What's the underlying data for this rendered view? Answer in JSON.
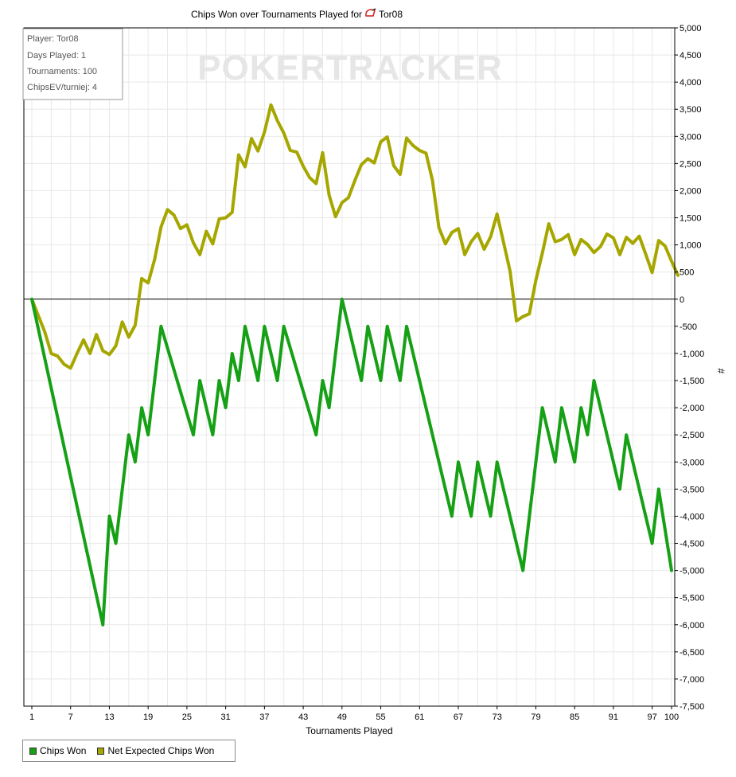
{
  "chart_data": {
    "type": "line",
    "title": "Chips Won over Tournaments Played for",
    "player_name": "Tor08",
    "xlabel": "Tournaments Played",
    "ylabel": "#",
    "xlim": [
      1,
      100
    ],
    "ylim": [
      -7500,
      5000
    ],
    "x_ticks": [
      1,
      7,
      13,
      19,
      25,
      31,
      37,
      43,
      49,
      55,
      61,
      67,
      73,
      79,
      85,
      91,
      97,
      100
    ],
    "y_ticks": [
      5000,
      4500,
      4000,
      3500,
      3000,
      2500,
      2000,
      1500,
      1000,
      500,
      0,
      -500,
      -1000,
      -1500,
      -2000,
      -2500,
      -3000,
      -3500,
      -4000,
      -4500,
      -5000,
      -5500,
      -6000,
      -6500,
      -7000,
      -7500
    ],
    "y_tick_labels": [
      "5,000",
      "4,500",
      "4,000",
      "3,500",
      "3,000",
      "2,500",
      "2,000",
      "1,500",
      "1,000",
      "500",
      "0",
      "-500",
      "-1,000",
      "-1,500",
      "-2,000",
      "-2,500",
      "-3,000",
      "-3,500",
      "-4,000",
      "-4,500",
      "-5,000",
      "-5,500",
      "-6,000",
      "-6,500",
      "-7,000",
      "-7,500"
    ],
    "grid": true,
    "legend_position": "bottom-left",
    "watermark": "POKERTRACKER",
    "info_box": [
      "Player: Tor08",
      "Days Played: 1",
      "Tournaments: 100",
      "ChipsEV/turniej: 4"
    ],
    "series": [
      {
        "name": "Chips Won",
        "color": "#16a016",
        "points": [
          [
            1,
            0
          ],
          [
            12,
            -6000
          ],
          [
            13,
            -4000
          ],
          [
            14,
            -4500
          ],
          [
            16,
            -2500
          ],
          [
            17,
            -3000
          ],
          [
            18,
            -2000
          ],
          [
            19,
            -2500
          ],
          [
            21,
            -500
          ],
          [
            26,
            -2500
          ],
          [
            27,
            -1500
          ],
          [
            29,
            -2500
          ],
          [
            30,
            -1500
          ],
          [
            31,
            -2000
          ],
          [
            32,
            -1000
          ],
          [
            33,
            -1500
          ],
          [
            34,
            -500
          ],
          [
            36,
            -1500
          ],
          [
            37,
            -500
          ],
          [
            39,
            -1500
          ],
          [
            40,
            -500
          ],
          [
            45,
            -2500
          ],
          [
            46,
            -1500
          ],
          [
            47,
            -2000
          ],
          [
            49,
            0
          ],
          [
            52,
            -1500
          ],
          [
            53,
            -500
          ],
          [
            55,
            -1500
          ],
          [
            56,
            -500
          ],
          [
            58,
            -1500
          ],
          [
            59,
            -500
          ],
          [
            66,
            -4000
          ],
          [
            67,
            -3000
          ],
          [
            69,
            -4000
          ],
          [
            70,
            -3000
          ],
          [
            72,
            -4000
          ],
          [
            73,
            -3000
          ],
          [
            77,
            -5000
          ],
          [
            80,
            -2000
          ],
          [
            82,
            -3000
          ],
          [
            83,
            -2000
          ],
          [
            85,
            -3000
          ],
          [
            86,
            -2000
          ],
          [
            87,
            -2500
          ],
          [
            88,
            -1500
          ],
          [
            92,
            -3500
          ],
          [
            93,
            -2500
          ],
          [
            97,
            -4500
          ],
          [
            98,
            -3500
          ],
          [
            100,
            -5000
          ]
        ]
      },
      {
        "name": "Net Expected Chips Won",
        "color": "#a6a600",
        "points": [
          [
            1,
            0
          ],
          [
            2,
            -300
          ],
          [
            3,
            -600
          ],
          [
            4,
            -1000
          ],
          [
            5,
            -1050
          ],
          [
            6,
            -1200
          ],
          [
            7,
            -1270
          ],
          [
            8,
            -1000
          ],
          [
            9,
            -750
          ],
          [
            10,
            -1000
          ],
          [
            11,
            -650
          ],
          [
            12,
            -950
          ],
          [
            13,
            -1020
          ],
          [
            14,
            -860
          ],
          [
            15,
            -420
          ],
          [
            16,
            -700
          ],
          [
            17,
            -480
          ],
          [
            18,
            380
          ],
          [
            19,
            300
          ],
          [
            20,
            730
          ],
          [
            21,
            1330
          ],
          [
            22,
            1650
          ],
          [
            23,
            1550
          ],
          [
            24,
            1300
          ],
          [
            25,
            1370
          ],
          [
            26,
            1040
          ],
          [
            27,
            820
          ],
          [
            28,
            1250
          ],
          [
            29,
            1020
          ],
          [
            30,
            1480
          ],
          [
            31,
            1500
          ],
          [
            32,
            1600
          ],
          [
            33,
            2660
          ],
          [
            34,
            2440
          ],
          [
            35,
            2960
          ],
          [
            36,
            2730
          ],
          [
            37,
            3080
          ],
          [
            38,
            3580
          ],
          [
            39,
            3290
          ],
          [
            40,
            3060
          ],
          [
            41,
            2740
          ],
          [
            42,
            2710
          ],
          [
            43,
            2450
          ],
          [
            44,
            2240
          ],
          [
            45,
            2130
          ],
          [
            46,
            2700
          ],
          [
            47,
            1920
          ],
          [
            48,
            1520
          ],
          [
            49,
            1780
          ],
          [
            50,
            1870
          ],
          [
            51,
            2190
          ],
          [
            52,
            2480
          ],
          [
            53,
            2590
          ],
          [
            54,
            2510
          ],
          [
            55,
            2900
          ],
          [
            56,
            2990
          ],
          [
            57,
            2460
          ],
          [
            58,
            2300
          ],
          [
            59,
            2970
          ],
          [
            60,
            2830
          ],
          [
            61,
            2740
          ],
          [
            62,
            2690
          ],
          [
            63,
            2190
          ],
          [
            64,
            1320
          ],
          [
            65,
            1020
          ],
          [
            66,
            1230
          ],
          [
            67,
            1300
          ],
          [
            68,
            820
          ],
          [
            69,
            1060
          ],
          [
            70,
            1210
          ],
          [
            71,
            920
          ],
          [
            72,
            1150
          ],
          [
            73,
            1570
          ],
          [
            74,
            1050
          ],
          [
            75,
            520
          ],
          [
            76,
            -400
          ],
          [
            77,
            -320
          ],
          [
            78,
            -270
          ],
          [
            79,
            350
          ],
          [
            80,
            850
          ],
          [
            81,
            1390
          ],
          [
            82,
            1060
          ],
          [
            83,
            1100
          ],
          [
            84,
            1190
          ],
          [
            85,
            820
          ],
          [
            86,
            1100
          ],
          [
            87,
            1010
          ],
          [
            88,
            860
          ],
          [
            89,
            970
          ],
          [
            90,
            1200
          ],
          [
            91,
            1130
          ],
          [
            92,
            820
          ],
          [
            93,
            1140
          ],
          [
            94,
            1030
          ],
          [
            95,
            1160
          ],
          [
            96,
            830
          ],
          [
            97,
            490
          ],
          [
            98,
            1080
          ],
          [
            99,
            980
          ],
          [
            100,
            700
          ],
          [
            101,
            440
          ]
        ]
      }
    ]
  }
}
